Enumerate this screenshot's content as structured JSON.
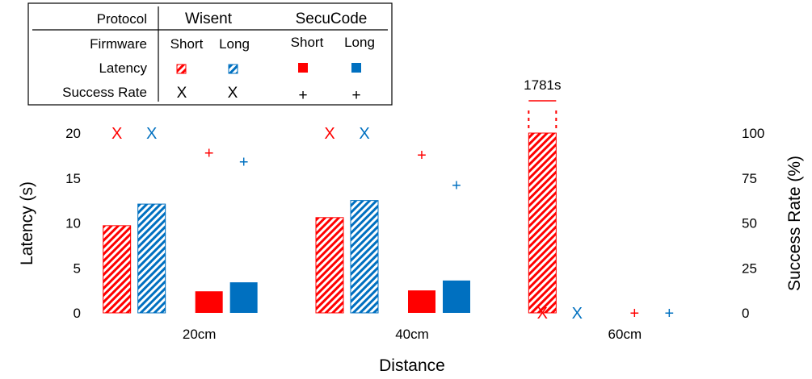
{
  "chart_data": {
    "type": "bar",
    "xlabel": "Distance",
    "ylabel": "Latency (s)",
    "y2label": "Success Rate (%)",
    "categories": [
      "20cm",
      "40cm",
      "60cm"
    ],
    "ylim": [
      0,
      20
    ],
    "y2lim": [
      0,
      100
    ],
    "yticks": [
      0,
      5,
      10,
      15,
      20
    ],
    "y2ticks": [
      0,
      25,
      50,
      75,
      100
    ],
    "grid": false,
    "series": [
      {
        "protocol": "Wisent",
        "firmware": "Short",
        "latency": [
          9.7,
          10.6,
          20
        ],
        "success_rate": [
          100,
          100,
          0
        ],
        "color": "#ff0000",
        "pattern": "hatched",
        "marker": "X"
      },
      {
        "protocol": "Wisent",
        "firmware": "Long",
        "latency": [
          12.1,
          12.5,
          null
        ],
        "success_rate": [
          100,
          100,
          0
        ],
        "color": "#0070c0",
        "pattern": "hatched",
        "marker": "X"
      },
      {
        "protocol": "SecuCode",
        "firmware": "Short",
        "latency": [
          2.4,
          2.5,
          null
        ],
        "success_rate": [
          89,
          88,
          0
        ],
        "color": "#ff0000",
        "pattern": "solid",
        "marker": "+"
      },
      {
        "protocol": "SecuCode",
        "firmware": "Long",
        "latency": [
          3.4,
          3.6,
          null
        ],
        "success_rate": [
          84,
          71,
          0
        ],
        "color": "#0070c0",
        "pattern": "solid",
        "marker": "+"
      }
    ],
    "annotation": {
      "text": "1781s",
      "category": "60cm",
      "series": 0
    },
    "legend": {
      "placement": "top-left",
      "row_labels": [
        "Protocol",
        "Firmware",
        "Latency",
        "Success Rate"
      ],
      "protocols": [
        "Wisent",
        "SecuCode"
      ],
      "firmware": [
        "Short",
        "Long",
        "Short",
        "Long"
      ]
    }
  }
}
